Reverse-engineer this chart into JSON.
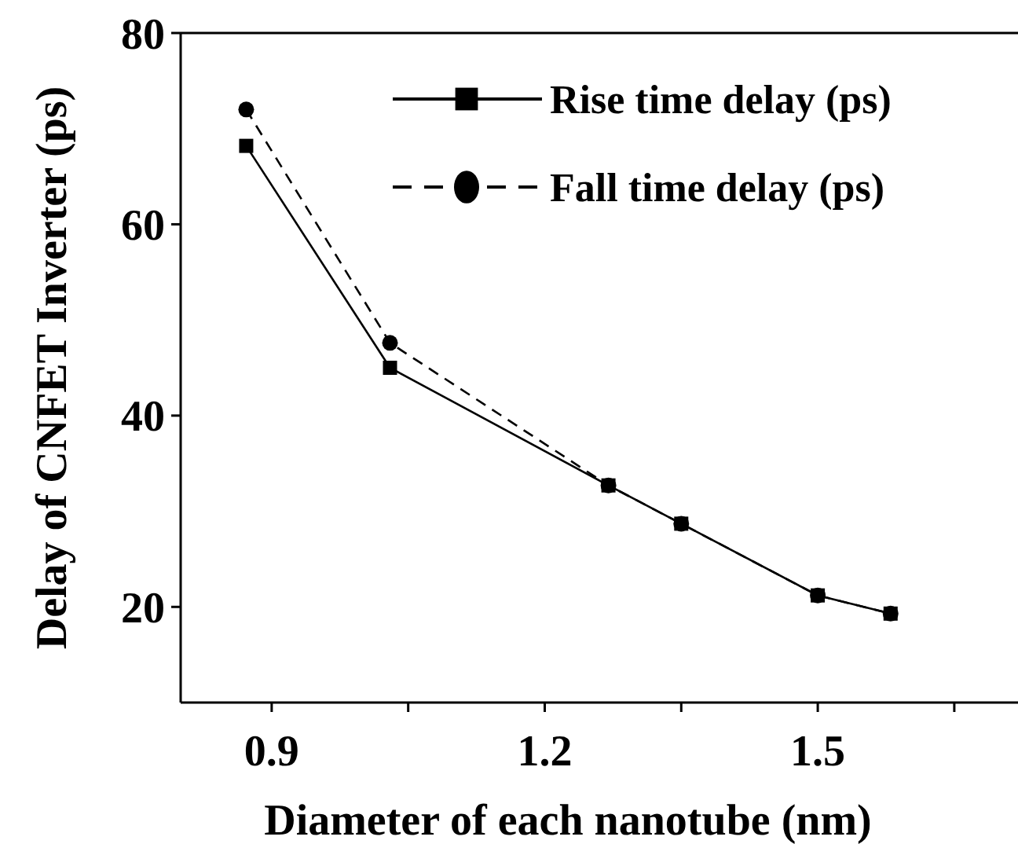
{
  "chart_data": {
    "type": "line",
    "xlabel": "Diameter of each nanotube (nm)",
    "ylabel": "Delay of CNFET Inverter (ps)",
    "xlim": [
      0.8,
      1.72
    ],
    "xticks": [
      0.9,
      {
        "value": 1.05,
        "label": null
      },
      1.2,
      {
        "value": 1.35,
        "label": null
      },
      1.5,
      {
        "value": 1.65,
        "label": null
      }
    ],
    "ylim": [
      10,
      80
    ],
    "yticks": [
      20,
      40,
      60,
      80
    ],
    "grid": false,
    "legend": "top right",
    "series": [
      {
        "name": "Rise time delay (ps)",
        "color": "#000000",
        "marker": "square",
        "line_style": "solid",
        "x": [
          0.872,
          1.03,
          1.27,
          1.35,
          1.5,
          1.58
        ],
        "values": [
          68.2,
          45,
          32.7,
          28.7,
          21.2,
          19.3
        ]
      },
      {
        "name": "Fall time delay (ps)",
        "color": "#000000",
        "marker": "circle",
        "line_style": "dashed",
        "x": [
          0.872,
          1.03,
          1.27,
          1.35,
          1.5,
          1.58
        ],
        "values": [
          72,
          47.6,
          32.7,
          28.7,
          21.2,
          19.3
        ]
      }
    ]
  }
}
